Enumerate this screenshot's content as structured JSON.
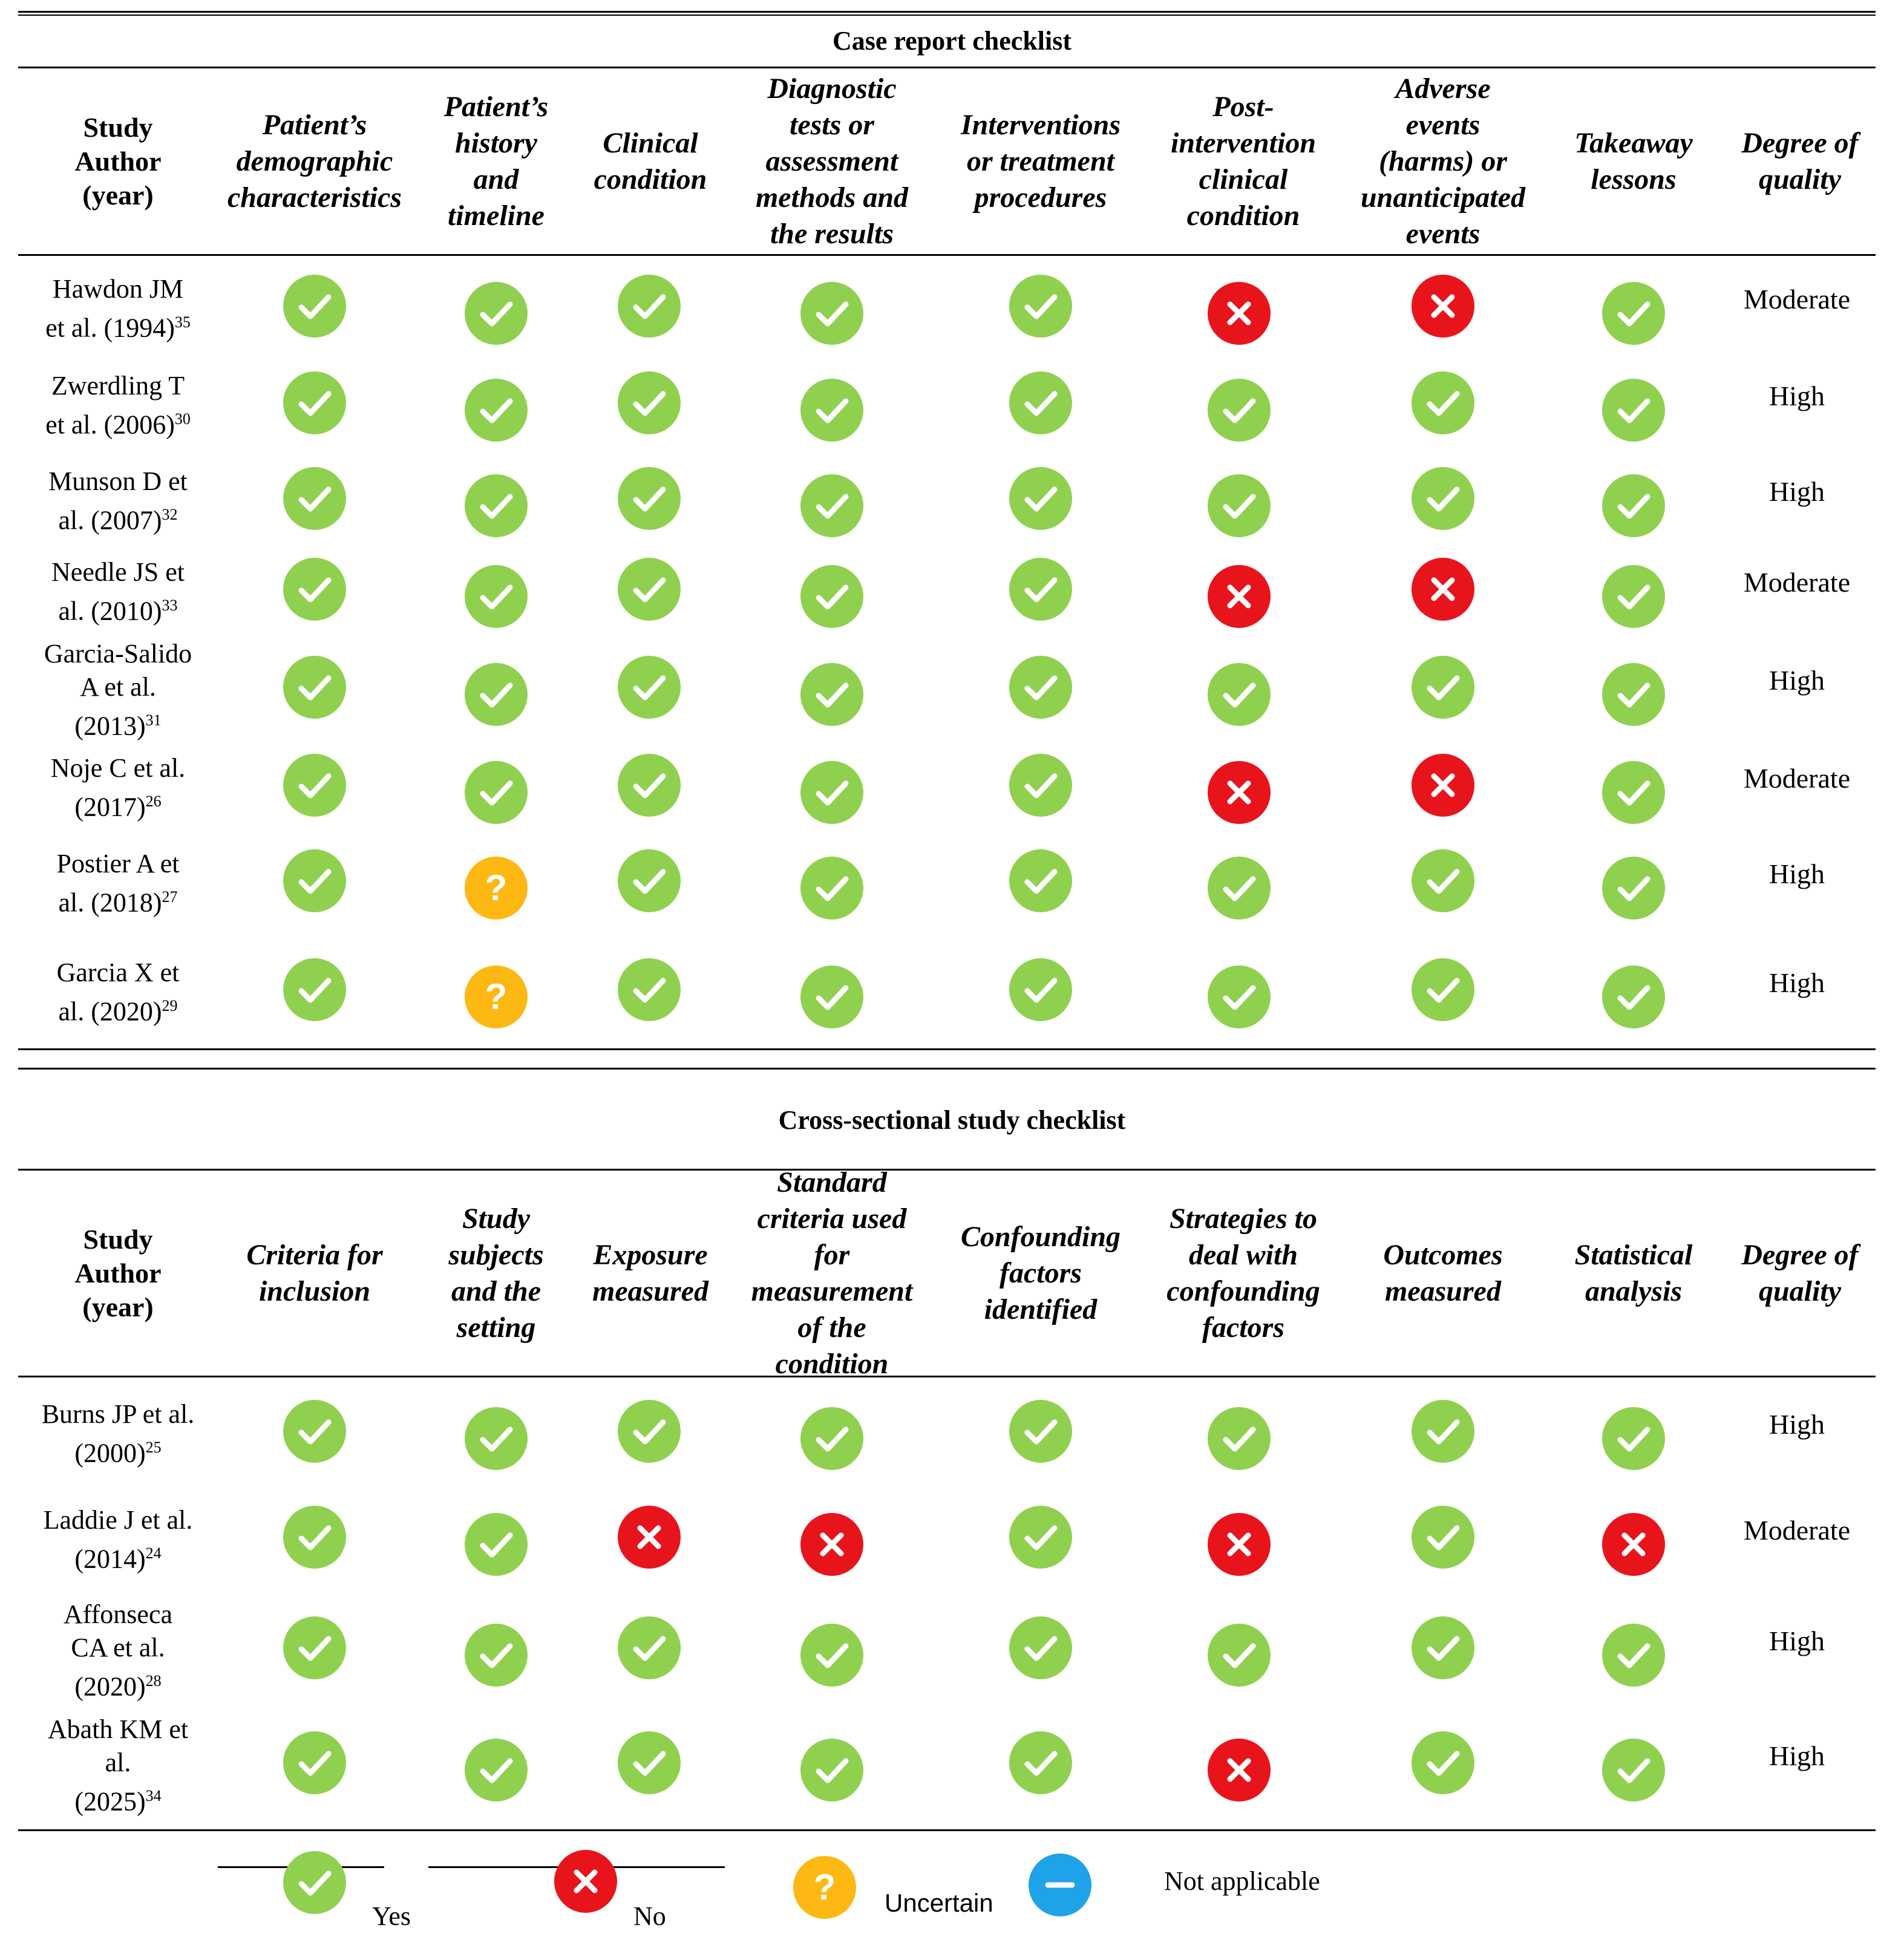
{
  "case_report": {
    "title": "Case report checklist",
    "headers": {
      "author": "Study\nAuthor\n(year)",
      "c1": "Patient’s\ndemographic\ncharacteristics",
      "c2": "Patient’s\nhistory\nand\ntimeline",
      "c3": "Clinical\ncondition",
      "c4": "Diagnostic\ntests or\nassessment\nmethods and\nthe results",
      "c5": "Interventions\nor treatment\nprocedures",
      "c6": "Post-\nintervention\nclinical\ncondition",
      "c7": "Adverse\nevents\n(harms) or\nunanticipated\nevents",
      "c8": "Takeaway\nlessons",
      "quality": "Degree of\nquality"
    },
    "rows": [
      {
        "author_l1": "Hawdon JM",
        "author_l2": "et al. (1994)",
        "ref": "35",
        "cells": [
          "yes",
          "yes",
          "yes",
          "yes",
          "yes",
          "no",
          "no",
          "yes"
        ],
        "quality": "Moderate"
      },
      {
        "author_l1": "Zwerdling T",
        "author_l2": "et al. (2006)",
        "ref": "30",
        "cells": [
          "yes",
          "yes",
          "yes",
          "yes",
          "yes",
          "yes",
          "yes",
          "yes"
        ],
        "quality": "High"
      },
      {
        "author_l1": "Munson D et",
        "author_l2": "al. (2007)",
        "ref": "32",
        "cells": [
          "yes",
          "yes",
          "yes",
          "yes",
          "yes",
          "yes",
          "yes",
          "yes"
        ],
        "quality": "High"
      },
      {
        "author_l1": "Needle JS et",
        "author_l2": "al. (2010)",
        "ref": "33",
        "cells": [
          "yes",
          "yes",
          "yes",
          "yes",
          "yes",
          "no",
          "no",
          "yes"
        ],
        "quality": "Moderate"
      },
      {
        "author_l1": "Garcia-Salido",
        "author_l2": "A et al.",
        "author_l3": "(2013)",
        "ref": "31",
        "cells": [
          "yes",
          "yes",
          "yes",
          "yes",
          "yes",
          "yes",
          "yes",
          "yes"
        ],
        "quality": "High"
      },
      {
        "author_l1": "Noje C et al.",
        "author_l2": "(2017)",
        "ref": "26",
        "cells": [
          "yes",
          "yes",
          "yes",
          "yes",
          "yes",
          "no",
          "no",
          "yes"
        ],
        "quality": "Moderate"
      },
      {
        "author_l1": "Postier A et",
        "author_l2": "al. (2018)",
        "ref": "27",
        "cells": [
          "yes",
          "unc",
          "yes",
          "yes",
          "yes",
          "yes",
          "yes",
          "yes"
        ],
        "quality": "High"
      },
      {
        "author_l1": "Garcia X et",
        "author_l2": "al. (2020)",
        "ref": "29",
        "cells": [
          "yes",
          "unc",
          "yes",
          "yes",
          "yes",
          "yes",
          "yes",
          "yes"
        ],
        "quality": "High"
      }
    ]
  },
  "cross_sectional": {
    "title": "Cross-sectional study checklist",
    "headers": {
      "author": "Study\nAuthor\n(year)",
      "c1": "Criteria for\ninclusion",
      "c2": "Study\nsubjects\nand the\nsetting",
      "c3": "Exposure\nmeasured",
      "c4": "Standard\ncriteria used\nfor\nmeasurement\nof the\ncondition",
      "c5": "Confounding\nfactors\nidentified",
      "c6": "Strategies to\ndeal with\nconfounding\nfactors",
      "c7": "Outcomes\nmeasured",
      "c8": "Statistical\nanalysis",
      "quality": "Degree of\nquality"
    },
    "rows": [
      {
        "author_l1": "Burns JP et al.",
        "author_l2": "(2000)",
        "ref": "25",
        "cells": [
          "yes",
          "yes",
          "yes",
          "yes",
          "yes",
          "yes",
          "yes",
          "yes"
        ],
        "quality": "High"
      },
      {
        "author_l1": "Laddie J et al.",
        "author_l2": "(2014)",
        "ref": "24",
        "cells": [
          "yes",
          "yes",
          "no",
          "no",
          "yes",
          "no",
          "yes",
          "no"
        ],
        "quality": "Moderate"
      },
      {
        "author_l1": "Affonseca",
        "author_l2": "CA et al.",
        "author_l3": "(2020)",
        "ref": "28",
        "cells": [
          "yes",
          "yes",
          "yes",
          "yes",
          "yes",
          "yes",
          "yes",
          "yes"
        ],
        "quality": "High"
      },
      {
        "author_l1": "Abath KM et",
        "author_l2": "al.",
        "author_l3": "(2025)",
        "ref": "34",
        "cells": [
          "yes",
          "yes",
          "yes",
          "yes",
          "yes",
          "no",
          "yes",
          "yes"
        ],
        "quality": "High"
      }
    ]
  },
  "legend": {
    "yes": "Yes",
    "no": "No",
    "uncertain": "Uncertain",
    "na": "Not applicable"
  },
  "colors": {
    "yes": "#8fd14f",
    "no": "#e8141c",
    "uncertain": "#fdb813",
    "na": "#1fa3e8"
  },
  "icons": {
    "yes": "check-icon",
    "no": "cross-icon",
    "unc": "question-icon",
    "na": "minus-icon"
  }
}
